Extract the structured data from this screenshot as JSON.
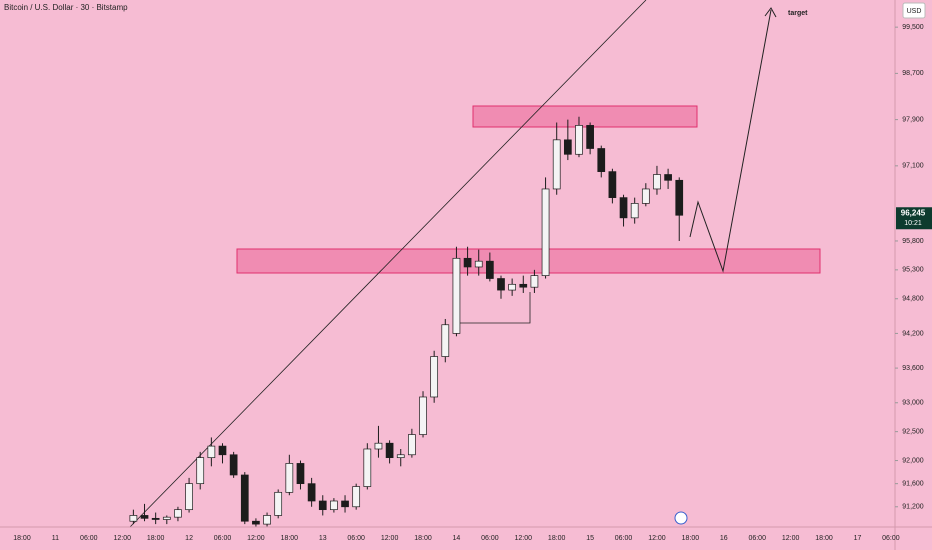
{
  "chart_data": {
    "type": "candlestick",
    "title": "Bitcoin / U.S. Dollar · 30 · Bitstamp",
    "currency": "USD",
    "annotation": "target",
    "up_color": "#f4f4f4",
    "down_color": "#1c1c1c",
    "wick_color": "#1c1c1c",
    "background": "#f6bcd3",
    "zone_color": "#f08cb2",
    "zone_border": "#e0306e",
    "categories": [
      null,
      null,
      "18:00",
      null,
      null,
      "11",
      null,
      null,
      "06:00",
      null,
      null,
      "12:00",
      null,
      null,
      "18:00",
      null,
      null,
      "12",
      null,
      null,
      "06:00",
      null,
      null,
      "12:00",
      null,
      null,
      "18:00",
      null,
      null,
      "13",
      null,
      null,
      "06:00",
      null,
      null,
      "12:00",
      null,
      null,
      "18:00",
      null,
      null,
      "14",
      null,
      null,
      "06:00",
      null,
      null,
      "12:00",
      null,
      null,
      "18:00",
      null,
      null,
      "15",
      null,
      null,
      "06:00",
      null,
      null,
      "12:00",
      null,
      null,
      "18:00",
      null,
      null,
      "16",
      null,
      null,
      "06:00",
      null,
      null,
      "12:00",
      null,
      null,
      "18:00",
      null,
      null,
      "17",
      null,
      null,
      "06:00"
    ],
    "open": [
      null,
      null,
      null,
      null,
      null,
      null,
      null,
      null,
      null,
      null,
      null,
      null,
      90950,
      91050,
      91000,
      90980,
      91020,
      91150,
      91600,
      92050,
      92250,
      92100,
      91750,
      90950,
      90900,
      91050,
      91450,
      91950,
      91600,
      91300,
      91150,
      91300,
      91200,
      91550,
      92200,
      92300,
      92050,
      92100,
      92450,
      93100,
      93800,
      94200,
      95500,
      95350,
      95450,
      95150,
      94950,
      95050,
      95000,
      95200,
      96700,
      97550,
      97300,
      97800,
      97400,
      97000,
      96550,
      96200,
      96450,
      96700,
      96950,
      96850,
      null,
      null,
      null,
      null,
      null,
      null,
      null,
      null,
      null,
      null,
      null,
      null,
      null,
      null,
      null,
      null,
      null,
      null,
      null
    ],
    "high": [
      null,
      null,
      null,
      null,
      null,
      null,
      null,
      null,
      null,
      null,
      null,
      null,
      91150,
      91250,
      91100,
      91050,
      91200,
      91700,
      92150,
      92400,
      92300,
      92150,
      91800,
      91000,
      91100,
      91500,
      92100,
      92000,
      91700,
      91400,
      91350,
      91400,
      91600,
      92300,
      92600,
      92350,
      92200,
      92550,
      93200,
      93900,
      94450,
      95700,
      95700,
      95650,
      95600,
      95200,
      95150,
      95200,
      95300,
      96900,
      97850,
      97900,
      97950,
      97850,
      97450,
      97050,
      96600,
      96550,
      96800,
      97100,
      97050,
      96900,
      null,
      null,
      null,
      null,
      null,
      null,
      null,
      null,
      null,
      null,
      null,
      null,
      null,
      null,
      null,
      null,
      null,
      null,
      null
    ],
    "low": [
      null,
      null,
      null,
      null,
      null,
      null,
      null,
      null,
      null,
      null,
      null,
      null,
      90900,
      90950,
      90900,
      90900,
      90950,
      91100,
      91500,
      91900,
      91950,
      91700,
      90900,
      90850,
      90860,
      91000,
      91400,
      91500,
      91200,
      91050,
      91100,
      91100,
      91150,
      91500,
      92050,
      91950,
      91900,
      92050,
      92400,
      93000,
      93700,
      94150,
      95200,
      95200,
      95100,
      94800,
      94850,
      94900,
      94900,
      95150,
      96600,
      97200,
      97250,
      97300,
      96900,
      96450,
      96050,
      96100,
      96400,
      96600,
      96700,
      95800,
      null,
      null,
      null,
      null,
      null,
      null,
      null,
      null,
      null,
      null,
      null,
      null,
      null,
      null,
      null,
      null,
      null,
      null,
      null
    ],
    "close": [
      null,
      null,
      null,
      null,
      null,
      null,
      null,
      null,
      null,
      null,
      null,
      null,
      91050,
      91000,
      90980,
      91020,
      91150,
      91600,
      92050,
      92250,
      92100,
      91750,
      90950,
      90900,
      91050,
      91450,
      91950,
      91600,
      91300,
      91150,
      91300,
      91200,
      91550,
      92200,
      92300,
      92050,
      92100,
      92450,
      93100,
      93800,
      94350,
      95500,
      95350,
      95450,
      95150,
      94950,
      95050,
      95000,
      95200,
      96700,
      97550,
      97300,
      97800,
      97400,
      97000,
      96550,
      96200,
      96450,
      96700,
      96950,
      96850,
      96245,
      null,
      null,
      null,
      null,
      null,
      null,
      null,
      null,
      null,
      null,
      null,
      null,
      null,
      null,
      null,
      null,
      null,
      null,
      null
    ],
    "ylim": [
      90850,
      99970
    ],
    "yticks": [
      {
        "value": 91200,
        "label": "91,200"
      },
      {
        "value": 91600,
        "label": "91,600"
      },
      {
        "value": 92000,
        "label": "92,000"
      },
      {
        "value": 92500,
        "label": "92,500"
      },
      {
        "value": 93000,
        "label": "93,000"
      },
      {
        "value": 93600,
        "label": "93,600"
      },
      {
        "value": 94200,
        "label": "94,200"
      },
      {
        "value": 94800,
        "label": "94,800"
      },
      {
        "value": 95300,
        "label": "95,300"
      },
      {
        "value": 95800,
        "label": "95,800"
      },
      {
        "value": 97100,
        "label": "97,100"
      },
      {
        "value": 97900,
        "label": "97,900"
      },
      {
        "value": 98700,
        "label": "98,700"
      },
      {
        "value": 99500,
        "label": "99,500"
      }
    ],
    "last_price": {
      "value": 96245,
      "label": "96,245"
    },
    "countdown": "10:21"
  }
}
